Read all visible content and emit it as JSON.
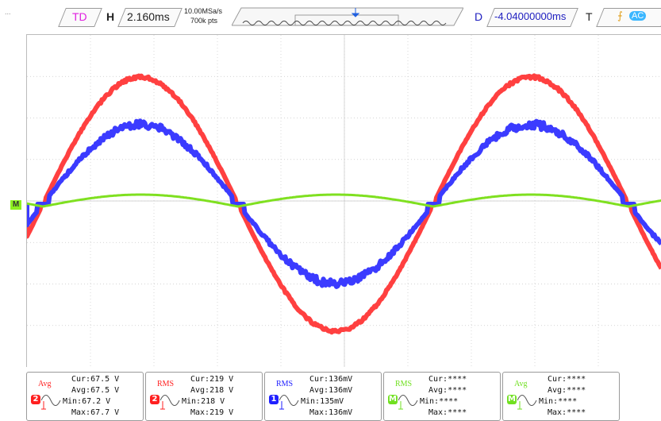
{
  "topbar": {
    "left_label": "...",
    "trigger_delay_label": "TD",
    "horizontal_label": "H",
    "timebase": "2.160ms",
    "sample_rate": "10.00MSa/s",
    "points": "700k pts",
    "delay_label": "D",
    "delay_value": "-4.04000000ms",
    "trigger_label": "T",
    "coupling": "AC"
  },
  "scope": {
    "math_marker": "M",
    "colors": {
      "ch1": "#3b3bff",
      "ch2": "#ff4040",
      "math": "#7fe020",
      "grid": "#c8c8c8"
    }
  },
  "measurements": [
    {
      "type": "Avg",
      "channel": "2",
      "color": "#ff2020",
      "cur": "Cur:67.5 V",
      "avg": "Avg:67.5 V",
      "min": "Min:67.2 V",
      "max": "Max:67.7 V"
    },
    {
      "type": "RMS",
      "channel": "2",
      "color": "#ff2020",
      "cur": "Cur:219 V",
      "avg": "Avg:218 V",
      "min": "Min:218 V",
      "max": "Max:219 V"
    },
    {
      "type": "RMS",
      "channel": "1",
      "color": "#2020ff",
      "cur": "Cur:136mV",
      "avg": "Avg:136mV",
      "min": "Min:135mV",
      "max": "Max:136mV"
    },
    {
      "type": "RMS",
      "channel": "M",
      "color": "#70e020",
      "cur": "Cur:****",
      "avg": "Avg:****",
      "min": "Min:****",
      "max": "Max:****"
    },
    {
      "type": "Avg",
      "channel": "M",
      "color": "#70e020",
      "cur": "Cur:****",
      "avg": "Avg:****",
      "min": "Min:****",
      "max": "Max:****"
    }
  ]
}
